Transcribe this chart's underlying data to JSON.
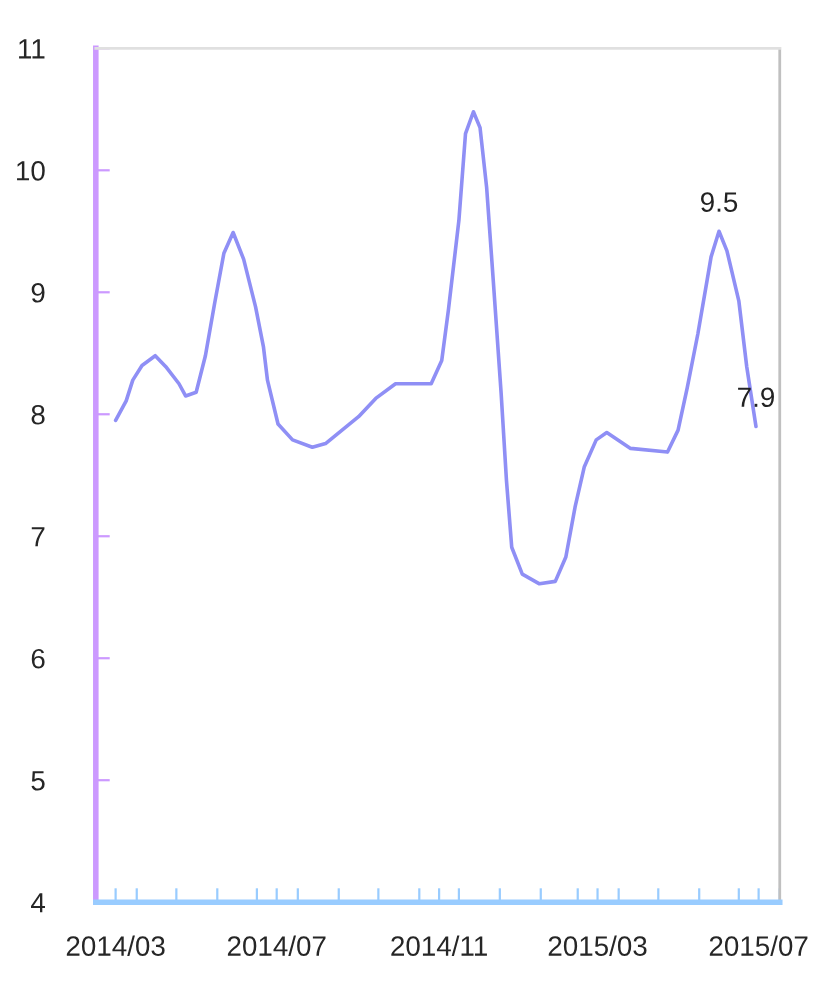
{
  "chart_data": {
    "type": "line",
    "x": [
      "2014-03-16",
      "2014-03-24",
      "2014-03-29",
      "2014-04-05",
      "2014-04-15",
      "2014-04-23",
      "2014-05-03",
      "2014-05-08",
      "2014-05-16",
      "2014-05-23",
      "2014-05-30",
      "2014-06-06",
      "2014-06-13",
      "2014-06-21",
      "2014-06-30",
      "2014-07-06",
      "2014-07-09",
      "2014-07-17",
      "2014-07-28",
      "2014-08-12",
      "2014-08-22",
      "2014-09-16",
      "2014-09-29",
      "2014-10-14",
      "2014-11-10",
      "2014-11-18",
      "2014-11-23",
      "2014-12-01",
      "2014-12-06",
      "2014-12-12",
      "2014-12-17",
      "2014-12-22",
      "2014-12-27",
      "2015-01-02",
      "2015-01-06",
      "2015-01-10",
      "2015-01-18",
      "2015-01-31",
      "2015-02-12",
      "2015-02-20",
      "2015-02-27",
      "2015-03-06",
      "2015-03-15",
      "2015-03-23",
      "2015-04-10",
      "2015-05-08",
      "2015-05-16",
      "2015-05-23",
      "2015-05-31",
      "2015-06-07",
      "2015-06-10",
      "2015-06-16",
      "2015-06-22",
      "2015-07-01",
      "2015-07-07",
      "2015-07-14"
    ],
    "series": [
      {
        "color": "#8f8ff5",
        "values": [
          7.95,
          8.11,
          8.28,
          8.4,
          8.48,
          8.39,
          8.25,
          8.15,
          8.18,
          8.48,
          8.91,
          9.32,
          9.49,
          9.27,
          8.88,
          8.55,
          8.28,
          7.92,
          7.79,
          7.73,
          7.76,
          7.98,
          8.13,
          8.25,
          8.25,
          8.44,
          8.85,
          9.59,
          10.3,
          10.48,
          10.35,
          9.86,
          9.1,
          8.17,
          7.46,
          6.91,
          6.69,
          6.61,
          6.63,
          6.83,
          7.24,
          7.57,
          7.79,
          7.85,
          7.72,
          7.69,
          7.87,
          8.22,
          8.66,
          9.1,
          9.29,
          9.5,
          9.34,
          8.93,
          8.39,
          7.9
        ]
      }
    ],
    "xlim": [
      "2014-03-01",
      "2015-08-01"
    ],
    "xticks": [
      {
        "value": "2014-03-01",
        "label": null
      },
      {
        "value": "2014-03-16",
        "label": "2014/03"
      },
      {
        "value": "2014-04-01",
        "label": null
      },
      {
        "value": "2014-05-01",
        "label": null
      },
      {
        "value": "2014-06-01",
        "label": null
      },
      {
        "value": "2014-07-01",
        "label": null
      },
      {
        "value": "2014-07-16",
        "label": "2014/07"
      },
      {
        "value": "2014-08-01",
        "label": null
      },
      {
        "value": "2014-09-01",
        "label": null
      },
      {
        "value": "2014-10-01",
        "label": null
      },
      {
        "value": "2014-11-01",
        "label": null
      },
      {
        "value": "2014-11-16",
        "label": "2014/11"
      },
      {
        "value": "2014-12-01",
        "label": null
      },
      {
        "value": "2015-01-01",
        "label": null
      },
      {
        "value": "2015-02-01",
        "label": null
      },
      {
        "value": "2015-03-01",
        "label": null
      },
      {
        "value": "2015-03-16",
        "label": "2015/03"
      },
      {
        "value": "2015-04-01",
        "label": null
      },
      {
        "value": "2015-05-01",
        "label": null
      },
      {
        "value": "2015-06-01",
        "label": null
      },
      {
        "value": "2015-07-01",
        "label": null
      },
      {
        "value": "2015-07-16",
        "label": "2015/07"
      },
      {
        "value": "2015-08-01",
        "label": null
      }
    ],
    "ylim": [
      4,
      11
    ],
    "yticks": [
      4,
      5,
      6,
      7,
      8,
      9,
      10,
      11
    ],
    "grid": false,
    "legend": false,
    "annotations": [
      {
        "text": "9.5",
        "x": "2015-06-16",
        "y": 9.5
      },
      {
        "text": "7.9",
        "x": "2015-07-14",
        "y": 7.9
      }
    ]
  }
}
